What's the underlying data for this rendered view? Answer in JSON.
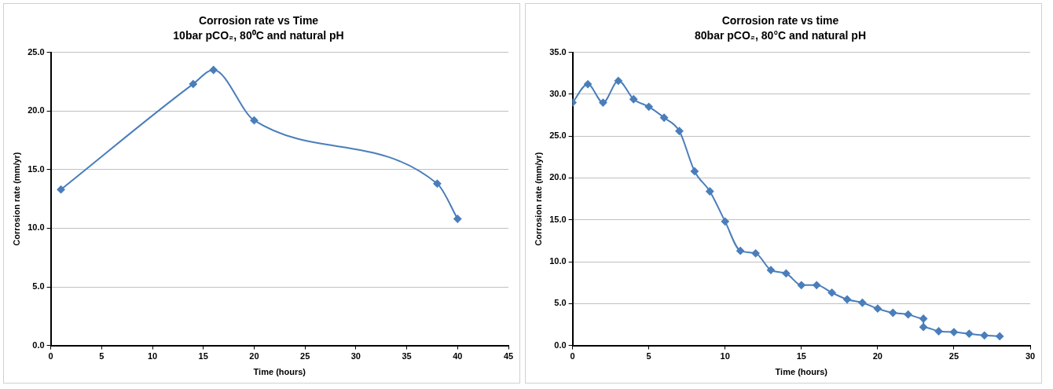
{
  "chart_data": [
    {
      "type": "line",
      "title": "Corrosion rate vs Time",
      "subtitle": "10bar pCO₂, 80⁰C and natural pH",
      "xlabel": "Time (hours)",
      "ylabel": "Corrosion rate (mm/yr)",
      "x": [
        1,
        14,
        16,
        20,
        38,
        40
      ],
      "series": [
        {
          "color": "#4a7ebb",
          "values": [
            13.3,
            22.3,
            23.5,
            19.2,
            13.8,
            10.8
          ]
        }
      ],
      "xlim": [
        0,
        45
      ],
      "xticks": [
        0,
        5,
        10,
        15,
        20,
        25,
        30,
        35,
        40,
        45
      ],
      "ylim": [
        0,
        25
      ],
      "yticks": [
        {
          "value": 0,
          "label": "0.0"
        },
        {
          "value": 5,
          "label": "5.0"
        },
        {
          "value": 10,
          "label": "10.0"
        },
        {
          "value": 15,
          "label": "15.0"
        },
        {
          "value": 20,
          "label": "20.0"
        },
        {
          "value": 25,
          "label": "25.0"
        }
      ],
      "grid": "y",
      "legend": false,
      "marker": "diamond",
      "line_style": "solid"
    },
    {
      "type": "line",
      "title": "Corrosion rate vs time",
      "subtitle": "80bar pCO₂, 80°C and natural pH",
      "xlabel": "Time (hours)",
      "ylabel": "Corrosion rate (mm/yr)",
      "x": [
        0,
        1,
        2,
        3,
        4,
        5,
        6,
        7,
        8,
        9,
        10,
        11,
        12,
        13,
        14,
        15,
        16,
        17,
        18,
        19,
        20,
        21,
        22,
        23,
        23,
        24,
        25,
        26,
        27,
        28
      ],
      "series": [
        {
          "color": "#4a7ebb",
          "values": [
            29.0,
            31.2,
            29.0,
            31.6,
            29.4,
            28.5,
            27.2,
            25.6,
            20.8,
            18.4,
            14.8,
            11.3,
            11.0,
            9.0,
            8.6,
            7.2,
            7.2,
            6.3,
            5.5,
            5.1,
            4.4,
            3.9,
            3.7,
            3.2,
            2.2,
            1.7,
            1.6,
            1.4,
            1.2,
            1.1
          ]
        }
      ],
      "xlim": [
        0,
        30
      ],
      "xticks": [
        0,
        5,
        10,
        15,
        20,
        25,
        30
      ],
      "ylim": [
        0,
        35
      ],
      "yticks": [
        {
          "value": 0,
          "label": "0.0"
        },
        {
          "value": 5,
          "label": "5.0"
        },
        {
          "value": 10,
          "label": "10.0"
        },
        {
          "value": 15,
          "label": "15.0"
        },
        {
          "value": 20,
          "label": "20.0"
        },
        {
          "value": 25,
          "label": "25.0"
        },
        {
          "value": 30,
          "label": "30.0"
        },
        {
          "value": 35,
          "label": "35.0"
        }
      ],
      "grid": "y",
      "legend": false,
      "marker": "diamond",
      "line_style": "solid"
    }
  ]
}
